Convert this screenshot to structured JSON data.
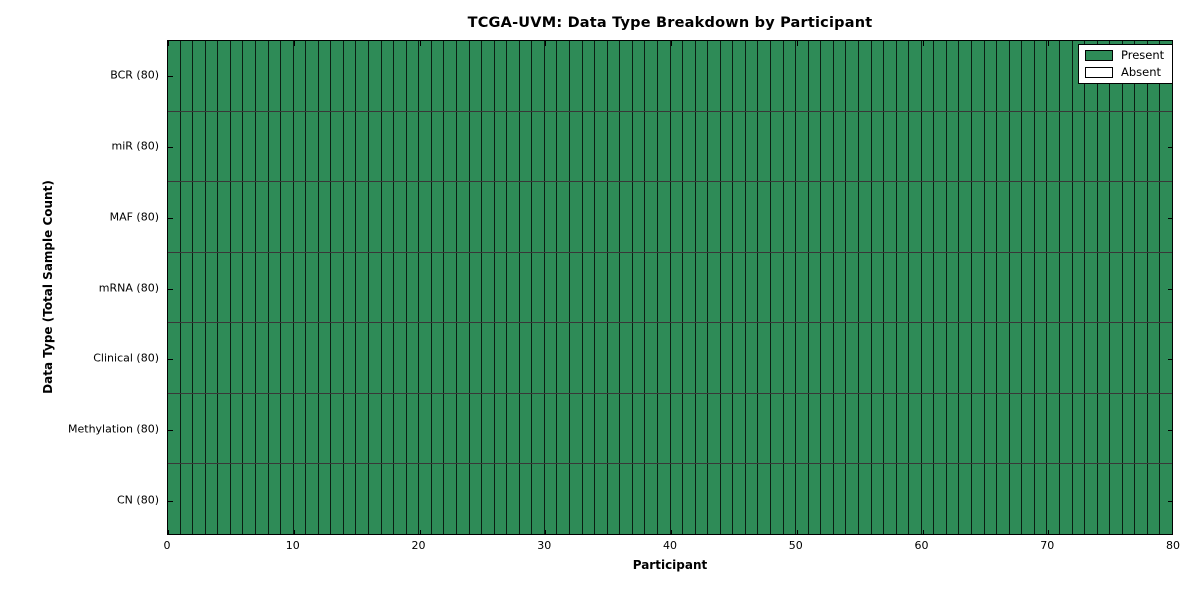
{
  "figure": {
    "title": "TCGA-UVM: Data Type Breakdown by Participant",
    "xlabel": "Participant",
    "ylabel": "Data Type (Total Sample Count)"
  },
  "chart_data": {
    "type": "heatmap",
    "title": "TCGA-UVM: Data Type Breakdown by Participant",
    "xlabel": "Participant",
    "ylabel": "Data Type (Total Sample Count)",
    "xlim": [
      0,
      80
    ],
    "x_ticks": [
      0,
      10,
      20,
      30,
      40,
      50,
      60,
      70,
      80
    ],
    "n_participants": 80,
    "rows": [
      {
        "label": "BCR (80)",
        "total_samples": 80,
        "present_count": 80,
        "absent_count": 0
      },
      {
        "label": "miR (80)",
        "total_samples": 80,
        "present_count": 80,
        "absent_count": 0
      },
      {
        "label": "MAF (80)",
        "total_samples": 80,
        "present_count": 80,
        "absent_count": 0
      },
      {
        "label": "mRNA (80)",
        "total_samples": 80,
        "present_count": 80,
        "absent_count": 0
      },
      {
        "label": "Clinical (80)",
        "total_samples": 80,
        "present_count": 80,
        "absent_count": 0
      },
      {
        "label": "Methylation (80)",
        "total_samples": 80,
        "present_count": 80,
        "absent_count": 0
      },
      {
        "label": "CN (80)",
        "total_samples": 80,
        "present_count": 80,
        "absent_count": 0
      }
    ],
    "legend": {
      "position": "upper right",
      "entries": [
        {
          "label": "Present",
          "color": "#2e8b57"
        },
        {
          "label": "Absent",
          "color": "#ffffff"
        }
      ]
    },
    "colors": {
      "present": "#2e8b57",
      "absent": "#ffffff",
      "cell_border": "#000000",
      "axis": "#000000",
      "background": "#ffffff"
    },
    "grid": true
  }
}
